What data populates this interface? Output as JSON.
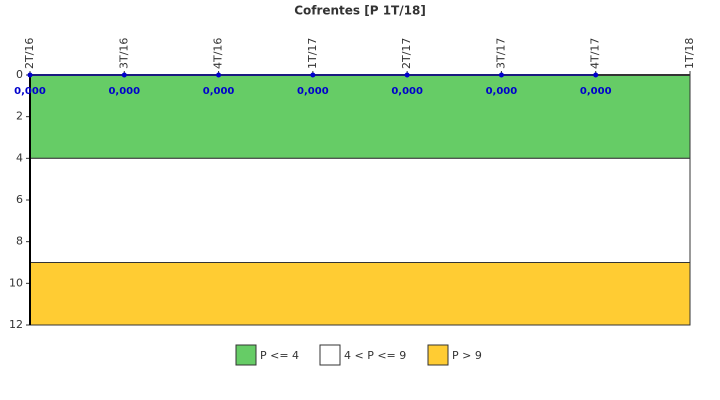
{
  "chart_data": {
    "type": "line",
    "title": "Cofrentes [P 1T/18]",
    "categories": [
      "2T/16",
      "3T/16",
      "4T/16",
      "1T/17",
      "2T/17",
      "3T/17",
      "4T/17",
      "1T/18"
    ],
    "series": [
      {
        "color": "#0000cc",
        "values": [
          0,
          0,
          0,
          0,
          0,
          0,
          0,
          null
        ],
        "value_labels": [
          "0,000",
          "0,000",
          "0,000",
          "0,000",
          "0,000",
          "0,000",
          "0,000",
          null
        ]
      }
    ],
    "ylim": [
      0,
      12
    ],
    "yticks": [
      0,
      2,
      4,
      6,
      8,
      10,
      12
    ],
    "y_inverted": true,
    "bands": [
      {
        "name": "P <= 4",
        "color": "#66cc66",
        "from": 0,
        "to": 4
      },
      {
        "name": "4 < P <= 9",
        "color": "#ffffff",
        "from": 4,
        "to": 9
      },
      {
        "name": "P > 9",
        "color": "#ffcc33",
        "from": 9,
        "to": 12
      }
    ]
  }
}
